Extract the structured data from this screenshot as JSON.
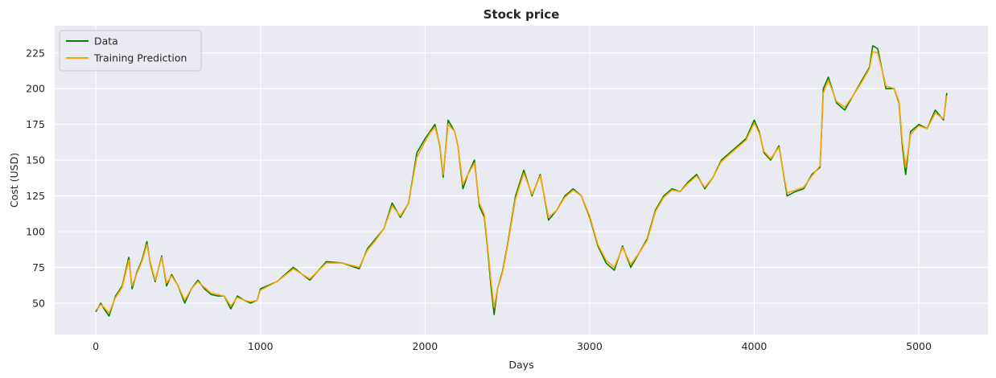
{
  "chart_data": {
    "type": "line",
    "title": "Stock price",
    "xlabel": "Days",
    "ylabel": "Cost (USD)",
    "xlim": [
      -250,
      5420
    ],
    "ylim": [
      28,
      244
    ],
    "xticks": [
      0,
      1000,
      2000,
      3000,
      4000,
      5000
    ],
    "yticks": [
      50,
      75,
      100,
      125,
      150,
      175,
      200,
      225
    ],
    "grid": true,
    "legend_position": "top-left",
    "background": "#eaeaf2",
    "series": [
      {
        "name": "Data",
        "color": "#008000",
        "x": [
          0,
          30,
          50,
          80,
          120,
          160,
          200,
          220,
          250,
          280,
          310,
          330,
          360,
          400,
          430,
          460,
          500,
          540,
          580,
          620,
          660,
          700,
          740,
          780,
          820,
          860,
          900,
          940,
          980,
          1000,
          1100,
          1200,
          1300,
          1400,
          1500,
          1600,
          1650,
          1700,
          1750,
          1800,
          1850,
          1900,
          1950,
          2000,
          2030,
          2060,
          2090,
          2110,
          2140,
          2180,
          2200,
          2230,
          2260,
          2300,
          2330,
          2360,
          2380,
          2400,
          2420,
          2440,
          2470,
          2500,
          2550,
          2600,
          2650,
          2700,
          2750,
          2800,
          2850,
          2900,
          2950,
          3000,
          3050,
          3100,
          3150,
          3200,
          3250,
          3300,
          3350,
          3400,
          3450,
          3500,
          3550,
          3600,
          3650,
          3700,
          3750,
          3800,
          3850,
          3900,
          3950,
          4000,
          4030,
          4060,
          4100,
          4150,
          4200,
          4250,
          4300,
          4350,
          4400,
          4420,
          4450,
          4500,
          4550,
          4600,
          4650,
          4700,
          4720,
          4750,
          4800,
          4850,
          4880,
          4900,
          4920,
          4950,
          5000,
          5050,
          5100,
          5150,
          5170
        ],
        "y": [
          44,
          50,
          46,
          41,
          55,
          62,
          82,
          60,
          72,
          80,
          93,
          78,
          65,
          83,
          62,
          70,
          62,
          50,
          60,
          66,
          60,
          56,
          55,
          55,
          46,
          55,
          52,
          50,
          52,
          60,
          65,
          75,
          66,
          79,
          78,
          74,
          88,
          95,
          102,
          120,
          110,
          120,
          155,
          165,
          170,
          175,
          160,
          138,
          178,
          170,
          160,
          130,
          140,
          150,
          118,
          110,
          88,
          62,
          42,
          60,
          72,
          90,
          125,
          143,
          125,
          140,
          108,
          115,
          125,
          130,
          125,
          110,
          90,
          78,
          73,
          90,
          75,
          85,
          95,
          115,
          125,
          130,
          128,
          135,
          140,
          130,
          138,
          150,
          155,
          160,
          165,
          178,
          170,
          155,
          150,
          160,
          125,
          128,
          130,
          140,
          145,
          200,
          208,
          190,
          185,
          195,
          205,
          215,
          230,
          228,
          200,
          200,
          190,
          160,
          140,
          170,
          175,
          172,
          185,
          178,
          197
        ]
      },
      {
        "name": "Training Prediction",
        "color": "#ffa500",
        "x": [
          0,
          30,
          50,
          80,
          120,
          160,
          200,
          220,
          250,
          280,
          310,
          330,
          360,
          400,
          430,
          460,
          500,
          540,
          580,
          620,
          660,
          700,
          740,
          780,
          820,
          860,
          900,
          940,
          980,
          1000,
          1100,
          1200,
          1300,
          1400,
          1500,
          1600,
          1650,
          1700,
          1750,
          1800,
          1850,
          1900,
          1950,
          2000,
          2030,
          2060,
          2090,
          2110,
          2140,
          2180,
          2200,
          2230,
          2260,
          2300,
          2330,
          2360,
          2380,
          2400,
          2420,
          2440,
          2470,
          2500,
          2550,
          2600,
          2650,
          2700,
          2750,
          2800,
          2850,
          2900,
          2950,
          3000,
          3050,
          3100,
          3150,
          3200,
          3250,
          3300,
          3350,
          3400,
          3450,
          3500,
          3550,
          3600,
          3650,
          3700,
          3750,
          3800,
          3850,
          3900,
          3950,
          4000,
          4030,
          4060,
          4100,
          4150,
          4200,
          4250,
          4300,
          4350,
          4400,
          4420,
          4450,
          4500,
          4550,
          4600,
          4650,
          4700,
          4720,
          4750,
          4800,
          4850,
          4880,
          4900,
          4920,
          4950,
          5000,
          5050,
          5100,
          5150,
          5170
        ],
        "y": [
          45,
          49,
          47,
          43,
          54,
          61,
          80,
          62,
          71,
          79,
          91,
          79,
          66,
          82,
          64,
          69,
          62,
          52,
          60,
          65,
          61,
          57,
          56,
          55,
          48,
          54,
          52,
          51,
          52,
          59,
          65,
          74,
          67,
          78,
          78,
          75,
          87,
          94,
          102,
          118,
          111,
          120,
          152,
          163,
          169,
          173,
          161,
          140,
          175,
          170,
          160,
          133,
          140,
          148,
          120,
          112,
          90,
          66,
          47,
          60,
          71,
          89,
          123,
          141,
          126,
          139,
          110,
          115,
          124,
          129,
          125,
          111,
          91,
          80,
          75,
          89,
          77,
          85,
          94,
          114,
          124,
          129,
          128,
          134,
          139,
          131,
          138,
          149,
          154,
          159,
          164,
          176,
          169,
          156,
          151,
          159,
          127,
          129,
          131,
          139,
          146,
          197,
          206,
          191,
          187,
          195,
          204,
          214,
          226,
          225,
          202,
          200,
          191,
          163,
          145,
          168,
          174,
          172,
          183,
          179,
          195
        ]
      }
    ]
  }
}
